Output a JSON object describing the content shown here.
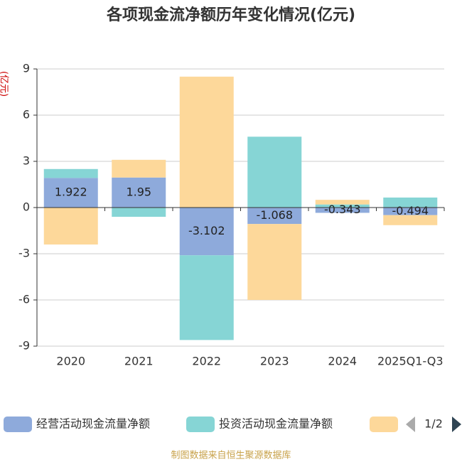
{
  "chart_data": {
    "type": "bar",
    "stacked": true,
    "title": "各项现金流净额历年变化情况(亿元)",
    "y_label": "(亿元)",
    "categories": [
      "2020",
      "2021",
      "2022",
      "2023",
      "2024",
      "2025Q1-Q3"
    ],
    "series": [
      {
        "name": "经营活动现金流量净额",
        "color": "#8eaadb",
        "values": [
          1.922,
          1.95,
          -3.102,
          -1.068,
          -0.343,
          -0.494
        ],
        "show_labels": true
      },
      {
        "name": "投资活动现金流量净额",
        "color": "#86d5d5",
        "values": [
          0.58,
          -0.6,
          -5.5,
          4.6,
          0.2,
          0.65
        ]
      },
      {
        "color": "#fdd89a",
        "values": [
          -2.4,
          1.15,
          8.5,
          -4.93,
          0.3,
          -0.65
        ]
      }
    ],
    "ylim": [
      -9,
      9
    ],
    "yticks": [
      -9,
      -6,
      -3,
      0,
      3,
      6,
      9
    ],
    "grid": true,
    "legend_page": "1/2",
    "source": "制图数据来自恒生聚源数据库"
  }
}
